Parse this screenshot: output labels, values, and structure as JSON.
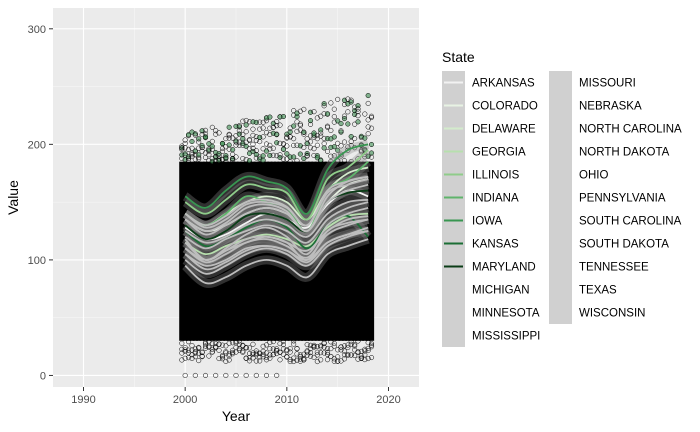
{
  "chart_data": {
    "type": "scatter",
    "xlabel": "Year",
    "ylabel": "Value",
    "xlim": [
      1987,
      2023
    ],
    "ylim": [
      -10,
      318
    ],
    "x_ticks": [
      1990,
      2000,
      2010,
      2020
    ],
    "y_ticks": [
      0,
      100,
      200,
      300
    ],
    "grid": true,
    "background": "#ebebeb",
    "legend": {
      "title": "State",
      "placement": "right",
      "columns": 2,
      "entries": [
        {
          "name": "ARKANSAS",
          "color": "#f2f2f2"
        },
        {
          "name": "COLORADO",
          "color": "#e8f3e4"
        },
        {
          "name": "DELAWARE",
          "color": "#d3ebcc"
        },
        {
          "name": "GEORGIA",
          "color": "#b7dfae"
        },
        {
          "name": "ILLINOIS",
          "color": "#8fcc8a"
        },
        {
          "name": "INDIANA",
          "color": "#5fb46b"
        },
        {
          "name": "IOWA",
          "color": "#389651"
        },
        {
          "name": "KANSAS",
          "color": "#1b6e35"
        },
        {
          "name": "MARYLAND",
          "color": "#0b3d17"
        },
        {
          "name": "MICHIGAN",
          "color": "#d0d0d0"
        },
        {
          "name": "MINNESOTA",
          "color": "#d0d0d0"
        },
        {
          "name": "MISSISSIPPI",
          "color": "#d0d0d0"
        },
        {
          "name": "MISSOURI",
          "color": "#d0d0d0"
        },
        {
          "name": "NEBRASKA",
          "color": "#d0d0d0"
        },
        {
          "name": "NORTH CAROLINA",
          "color": "#d0d0d0"
        },
        {
          "name": "NORTH DAKOTA",
          "color": "#d0d0d0"
        },
        {
          "name": "OHIO",
          "color": "#d0d0d0"
        },
        {
          "name": "PENNSYLVANIA",
          "color": "#d0d0d0"
        },
        {
          "name": "SOUTH CAROLINA",
          "color": "#d0d0d0"
        },
        {
          "name": "SOUTH DAKOTA",
          "color": "#d0d0d0"
        },
        {
          "name": "TENNESSEE",
          "color": "#d0d0d0"
        },
        {
          "name": "TEXAS",
          "color": "#d0d0d0"
        },
        {
          "name": "WISCONSIN",
          "color": "#d0d0d0"
        }
      ]
    },
    "points": {
      "x_years": [
        2000,
        2018
      ],
      "y_range_typical": [
        20,
        190
      ],
      "y_min": 0,
      "y_max": 245,
      "zero_value_years": [
        2000,
        2001,
        2002,
        2003,
        2004,
        2005,
        2006,
        2007,
        2008,
        2009
      ]
    },
    "series": [
      {
        "name": "ARKANSAS",
        "x": [
          2000,
          2002,
          2004,
          2006,
          2008,
          2010,
          2012,
          2014,
          2016,
          2018
        ],
        "values": [
          128,
          118,
          122,
          132,
          140,
          135,
          128,
          148,
          160,
          155
        ]
      },
      {
        "name": "COLORADO",
        "x": [
          2000,
          2002,
          2004,
          2006,
          2008,
          2010,
          2012,
          2014,
          2016,
          2018
        ],
        "values": [
          135,
          125,
          130,
          140,
          145,
          140,
          130,
          150,
          165,
          170
        ]
      },
      {
        "name": "DELAWARE",
        "x": [
          2000,
          2002,
          2004,
          2006,
          2008,
          2010,
          2012,
          2014,
          2016,
          2018
        ],
        "values": [
          140,
          130,
          140,
          150,
          155,
          150,
          135,
          160,
          175,
          180
        ]
      },
      {
        "name": "GEORGIA",
        "x": [
          2000,
          2002,
          2004,
          2006,
          2008,
          2010,
          2012,
          2014,
          2016,
          2018
        ],
        "values": [
          115,
          105,
          112,
          118,
          122,
          118,
          112,
          128,
          138,
          140
        ]
      },
      {
        "name": "ILLINOIS",
        "x": [
          2000,
          2002,
          2004,
          2006,
          2008,
          2010,
          2012,
          2014,
          2016,
          2018
        ],
        "values": [
          150,
          140,
          152,
          165,
          162,
          158,
          135,
          170,
          180,
          195
        ]
      },
      {
        "name": "INDIANA",
        "x": [
          2000,
          2002,
          2004,
          2006,
          2008,
          2010,
          2012,
          2014,
          2016,
          2018
        ],
        "values": [
          140,
          130,
          140,
          155,
          150,
          145,
          125,
          160,
          170,
          185
        ]
      },
      {
        "name": "IOWA",
        "x": [
          2000,
          2002,
          2004,
          2006,
          2008,
          2010,
          2012,
          2014,
          2016,
          2018
        ],
        "values": [
          155,
          145,
          160,
          172,
          168,
          162,
          140,
          178,
          195,
          200
        ]
      },
      {
        "name": "KANSAS",
        "x": [
          2000,
          2002,
          2004,
          2006,
          2008,
          2010,
          2012,
          2014,
          2016,
          2018
        ],
        "values": [
          125,
          112,
          118,
          128,
          135,
          128,
          110,
          130,
          138,
          120
        ]
      },
      {
        "name": "MARYLAND",
        "x": [
          2000,
          2002,
          2004,
          2006,
          2008,
          2010,
          2012,
          2014,
          2016,
          2018
        ],
        "values": [
          130,
          118,
          125,
          138,
          140,
          135,
          125,
          150,
          158,
          160
        ]
      },
      {
        "name": "MICHIGAN",
        "x": [
          2000,
          2002,
          2004,
          2006,
          2008,
          2010,
          2012,
          2014,
          2016,
          2018
        ],
        "values": [
          120,
          110,
          118,
          125,
          130,
          125,
          115,
          135,
          145,
          150
        ]
      },
      {
        "name": "MINNESOTA",
        "x": [
          2000,
          2002,
          2004,
          2006,
          2008,
          2010,
          2012,
          2014,
          2016,
          2018
        ],
        "values": [
          135,
          122,
          130,
          140,
          145,
          140,
          125,
          150,
          160,
          165
        ]
      },
      {
        "name": "MISSISSIPPI",
        "x": [
          2000,
          2002,
          2004,
          2006,
          2008,
          2010,
          2012,
          2014,
          2016,
          2018
        ],
        "values": [
          110,
          100,
          108,
          115,
          120,
          115,
          108,
          125,
          135,
          138
        ]
      },
      {
        "name": "MISSOURI",
        "x": [
          2000,
          2002,
          2004,
          2006,
          2008,
          2010,
          2012,
          2014,
          2016,
          2018
        ],
        "values": [
          118,
          100,
          110,
          122,
          128,
          120,
          105,
          130,
          140,
          145
        ]
      },
      {
        "name": "NEBRASKA",
        "x": [
          2000,
          2002,
          2004,
          2006,
          2008,
          2010,
          2012,
          2014,
          2016,
          2018
        ],
        "values": [
          140,
          128,
          135,
          148,
          150,
          145,
          130,
          158,
          165,
          170
        ]
      },
      {
        "name": "NORTH CAROLINA",
        "x": [
          2000,
          2002,
          2004,
          2006,
          2008,
          2010,
          2012,
          2014,
          2016,
          2018
        ],
        "values": [
          100,
          88,
          95,
          105,
          110,
          105,
          95,
          112,
          120,
          125
        ]
      },
      {
        "name": "NORTH DAKOTA",
        "x": [
          2000,
          2002,
          2004,
          2006,
          2008,
          2010,
          2012,
          2014,
          2016,
          2018
        ],
        "values": [
          105,
          95,
          100,
          110,
          112,
          108,
          100,
          115,
          122,
          125
        ]
      },
      {
        "name": "OHIO",
        "x": [
          2000,
          2002,
          2004,
          2006,
          2008,
          2010,
          2012,
          2014,
          2016,
          2018
        ],
        "values": [
          135,
          125,
          132,
          145,
          148,
          142,
          125,
          155,
          168,
          172
        ]
      },
      {
        "name": "PENNSYLVANIA",
        "x": [
          2000,
          2002,
          2004,
          2006,
          2008,
          2010,
          2012,
          2014,
          2016,
          2018
        ],
        "values": [
          125,
          115,
          120,
          130,
          135,
          130,
          120,
          140,
          150,
          152
        ]
      },
      {
        "name": "SOUTH CAROLINA",
        "x": [
          2000,
          2002,
          2004,
          2006,
          2008,
          2010,
          2012,
          2014,
          2016,
          2018
        ],
        "values": [
          95,
          80,
          85,
          95,
          100,
          95,
          85,
          105,
          112,
          118
        ]
      },
      {
        "name": "SOUTH DAKOTA",
        "x": [
          2000,
          2002,
          2004,
          2006,
          2008,
          2010,
          2012,
          2014,
          2016,
          2018
        ],
        "values": [
          115,
          100,
          108,
          118,
          120,
          115,
          100,
          125,
          132,
          135
        ]
      },
      {
        "name": "TENNESSEE",
        "x": [
          2000,
          2002,
          2004,
          2006,
          2008,
          2010,
          2012,
          2014,
          2016,
          2018
        ],
        "values": [
          110,
          98,
          105,
          115,
          118,
          112,
          102,
          122,
          130,
          135
        ]
      },
      {
        "name": "TEXAS",
        "x": [
          2000,
          2002,
          2004,
          2006,
          2008,
          2010,
          2012,
          2014,
          2016,
          2018
        ],
        "values": [
          105,
          92,
          98,
          108,
          112,
          108,
          98,
          115,
          122,
          128
        ]
      },
      {
        "name": "WISCONSIN",
        "x": [
          2000,
          2002,
          2004,
          2006,
          2008,
          2010,
          2012,
          2014,
          2016,
          2018
        ],
        "values": [
          140,
          130,
          138,
          150,
          152,
          146,
          130,
          160,
          168,
          172
        ]
      }
    ]
  }
}
